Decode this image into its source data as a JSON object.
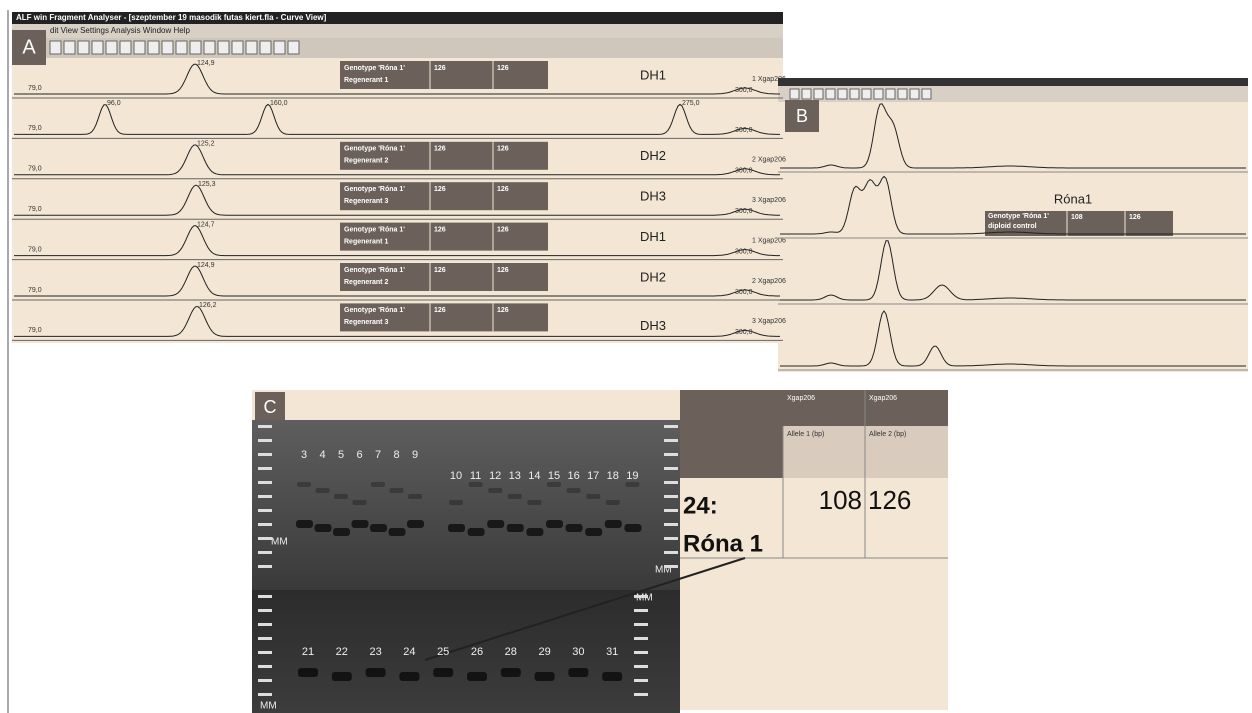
{
  "panel_a": {
    "label": "A",
    "title": "ALF win Fragment Analyser - [szeptember 19 masodik futas kiert.fla - Curve View]",
    "menu": "dit  View  Settings  Analysis  Window  Help",
    "rows": [
      {
        "peaks": [
          "79,0",
          "124,9"
        ],
        "genotype": "Genotype 'Róna 1'",
        "regenerant": "Regenerant 1",
        "allele1": "126",
        "allele2": "126",
        "dh": "DH1",
        "marker": "1 Xgap206",
        "end": "300,0"
      },
      {
        "peaks": [
          "79,0",
          "96,0",
          "160,0",
          "275,0"
        ],
        "end": "300,0"
      },
      {
        "peaks": [
          "79,0",
          "125,2"
        ],
        "genotype": "Genotype 'Róna 1'",
        "regenerant": "Regenerant 2",
        "allele1": "126",
        "allele2": "126",
        "dh": "DH2",
        "marker": "2 Xgap206",
        "end": "300,0"
      },
      {
        "peaks": [
          "79,0",
          "125,3"
        ],
        "genotype": "Genotype 'Róna 1'",
        "regenerant": "Regenerant 3",
        "allele1": "126",
        "allele2": "126",
        "dh": "DH3",
        "marker": "3 Xgap206",
        "end": "300,0"
      },
      {
        "peaks": [
          "79,0",
          "124,7"
        ],
        "genotype": "Genotype 'Róna 1'",
        "regenerant": "Regenerant 1",
        "allele1": "126",
        "allele2": "126",
        "dh": "DH1",
        "marker": "1 Xgap206",
        "end": "300,0"
      },
      {
        "peaks": [
          "79,0",
          "124,9"
        ],
        "genotype": "Genotype 'Róna 1'",
        "regenerant": "Regenerant 2",
        "allele1": "126",
        "allele2": "126",
        "dh": "DH2",
        "marker": "2 Xgap206",
        "end": "300,0"
      },
      {
        "peaks": [
          "79,0",
          "126,2"
        ],
        "genotype": "Genotype 'Róna 1'",
        "regenerant": "Regenerant 3",
        "allele1": "126",
        "allele2": "126",
        "dh": "DH3",
        "marker": "3 Xgap206",
        "end": "300,0"
      }
    ]
  },
  "panel_b": {
    "label": "B",
    "name": "Róna1",
    "genotype": "Genotype 'Róna 1' diploid control",
    "allele1": "108",
    "allele2": "126"
  },
  "panel_c": {
    "label": "C",
    "top_lanes": [
      "3",
      "4",
      "5",
      "6",
      "7",
      "8",
      "9",
      "10",
      "11",
      "12",
      "13",
      "14",
      "15",
      "16",
      "17",
      "18",
      "19"
    ],
    "bottom_lanes": [
      "21",
      "22",
      "23",
      "24",
      "25",
      "26",
      "28",
      "29",
      "30",
      "31"
    ],
    "mm": "MM",
    "table": {
      "headers": [
        "Xgap206",
        "Xgap206"
      ],
      "subheaders": [
        "Allele 1 (bp)",
        "Allele 2 (bp)"
      ],
      "sample_id": "24:",
      "sample_name": "Róna 1",
      "allele1": "108",
      "allele2": "126"
    }
  }
}
